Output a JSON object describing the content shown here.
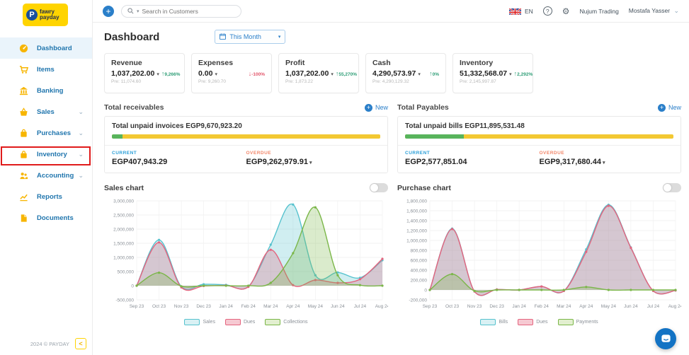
{
  "icons": {
    "caret_down": "▾",
    "chevron_down": "⌄",
    "plus": "+",
    "collapse": "<",
    "help": "?",
    "gear": "⚙"
  },
  "header": {
    "logo_line1": "fawry",
    "logo_line2": "payday",
    "logo_letter": "P",
    "search": {
      "placeholder": "Search in Customers"
    },
    "language": "EN",
    "company": "Nujum Trading",
    "user": "Mostafa Yasser"
  },
  "sidebar": {
    "items": [
      {
        "label": "Dashboard"
      },
      {
        "label": "Items"
      },
      {
        "label": "Banking"
      },
      {
        "label": "Sales"
      },
      {
        "label": "Purchases"
      },
      {
        "label": "Inventory"
      },
      {
        "label": "Accounting"
      },
      {
        "label": "Reports"
      },
      {
        "label": "Documents"
      }
    ],
    "footer": {
      "copyright": "2024 © PAYDAY"
    }
  },
  "page": {
    "title": "Dashboard",
    "period": "This Month"
  },
  "kpis": [
    {
      "title": "Revenue",
      "value": "1,037,202.00",
      "arrow": "↑",
      "trend_pct": "9,266%",
      "pre": "Pre: 11,074.60"
    },
    {
      "title": "Expenses",
      "value": "0.00",
      "arrow": "↓",
      "trend_pct": "-100%",
      "pre": "Pre: 9,260.70"
    },
    {
      "title": "Profit",
      "value": "1,037,202.00",
      "arrow": "↑",
      "trend_pct": "55,270%",
      "pre": "Pre: 1,873.22"
    },
    {
      "title": "Cash",
      "value": "4,290,573.97",
      "arrow": "↑",
      "trend_pct": "0%",
      "pre": "Pre: 4,290,129.32"
    },
    {
      "title": "Inventory",
      "value": "51,332,568.07",
      "arrow": "↑",
      "trend_pct": "2,292%",
      "pre": "Pre: 2,145,997.87"
    }
  ],
  "receivables": {
    "title": "Total receivables",
    "new_label": "New",
    "summary": "Total unpaid invoices EGP9,670,923.20",
    "progress_green_style": "width:4%",
    "current_label": "CURRENT",
    "current_value": "EGP407,943.29",
    "overdue_label": "OVERDUE",
    "overdue_value": "EGP9,262,979.91"
  },
  "payables": {
    "title": "Total Payables",
    "new_label": "New",
    "summary": "Total unpaid bills EGP11,895,531.48",
    "progress_green_style": "width:22%",
    "current_label": "CURRENT",
    "current_value": "EGP2,577,851.04",
    "overdue_label": "OVERDUE",
    "overdue_value": "EGP9,317,680.44"
  },
  "chart_data": [
    {
      "type": "area",
      "title": "Sales chart",
      "categories": [
        "Sep 23",
        "Oct 23",
        "Nov 23",
        "Dec 23",
        "Jan 24",
        "Feb 24",
        "Mar 24",
        "Apr 24",
        "May 24",
        "Jun 24",
        "Jul 24",
        "Aug 24"
      ],
      "ylim": [
        -500000,
        3000000
      ],
      "ytick": 500000,
      "grid": true,
      "legend_position": "bottom",
      "series": [
        {
          "name": "Sales",
          "color": "#56c2ce",
          "fill": "#d9f1f4",
          "values": [
            0,
            1620000,
            -30000,
            50000,
            30000,
            -30000,
            1450000,
            2870000,
            370000,
            470000,
            280000,
            900000
          ]
        },
        {
          "name": "Dues",
          "color": "#e4647e",
          "fill": "#f6c9d2",
          "values": [
            0,
            1530000,
            -60000,
            -10000,
            10000,
            -40000,
            1270000,
            20000,
            200000,
            100000,
            230000,
            950000
          ]
        },
        {
          "name": "Collections",
          "color": "#7ab648",
          "fill": "#e2efcf",
          "values": [
            0,
            460000,
            -20000,
            0,
            0,
            0,
            100000,
            1150000,
            2770000,
            370000,
            20000,
            0
          ]
        }
      ]
    },
    {
      "type": "area",
      "title": "Purchase chart",
      "categories": [
        "Sep 23",
        "Oct 23",
        "Nov 23",
        "Dec 23",
        "Jan 24",
        "Feb 24",
        "Mar 24",
        "Apr 24",
        "May 24",
        "Jun 24",
        "Jul 24",
        "Aug 24"
      ],
      "ylim": [
        -200000,
        1800000
      ],
      "ytick": 200000,
      "grid": true,
      "legend_position": "bottom",
      "series": [
        {
          "name": "Bills",
          "color": "#56c2ce",
          "fill": "#d9f1f4",
          "values": [
            0,
            1240000,
            -30000,
            10000,
            0,
            70000,
            -20000,
            820000,
            1720000,
            860000,
            -20000,
            -10000
          ]
        },
        {
          "name": "Dues",
          "color": "#e4647e",
          "fill": "#f6c9d2",
          "values": [
            0,
            1230000,
            -30000,
            10000,
            0,
            70000,
            -20000,
            770000,
            1700000,
            850000,
            -20000,
            -10000
          ]
        },
        {
          "name": "Payments",
          "color": "#7ab648",
          "fill": "#e2efcf",
          "values": [
            0,
            320000,
            -20000,
            0,
            0,
            0,
            0,
            60000,
            0,
            0,
            0,
            0
          ]
        }
      ]
    }
  ]
}
